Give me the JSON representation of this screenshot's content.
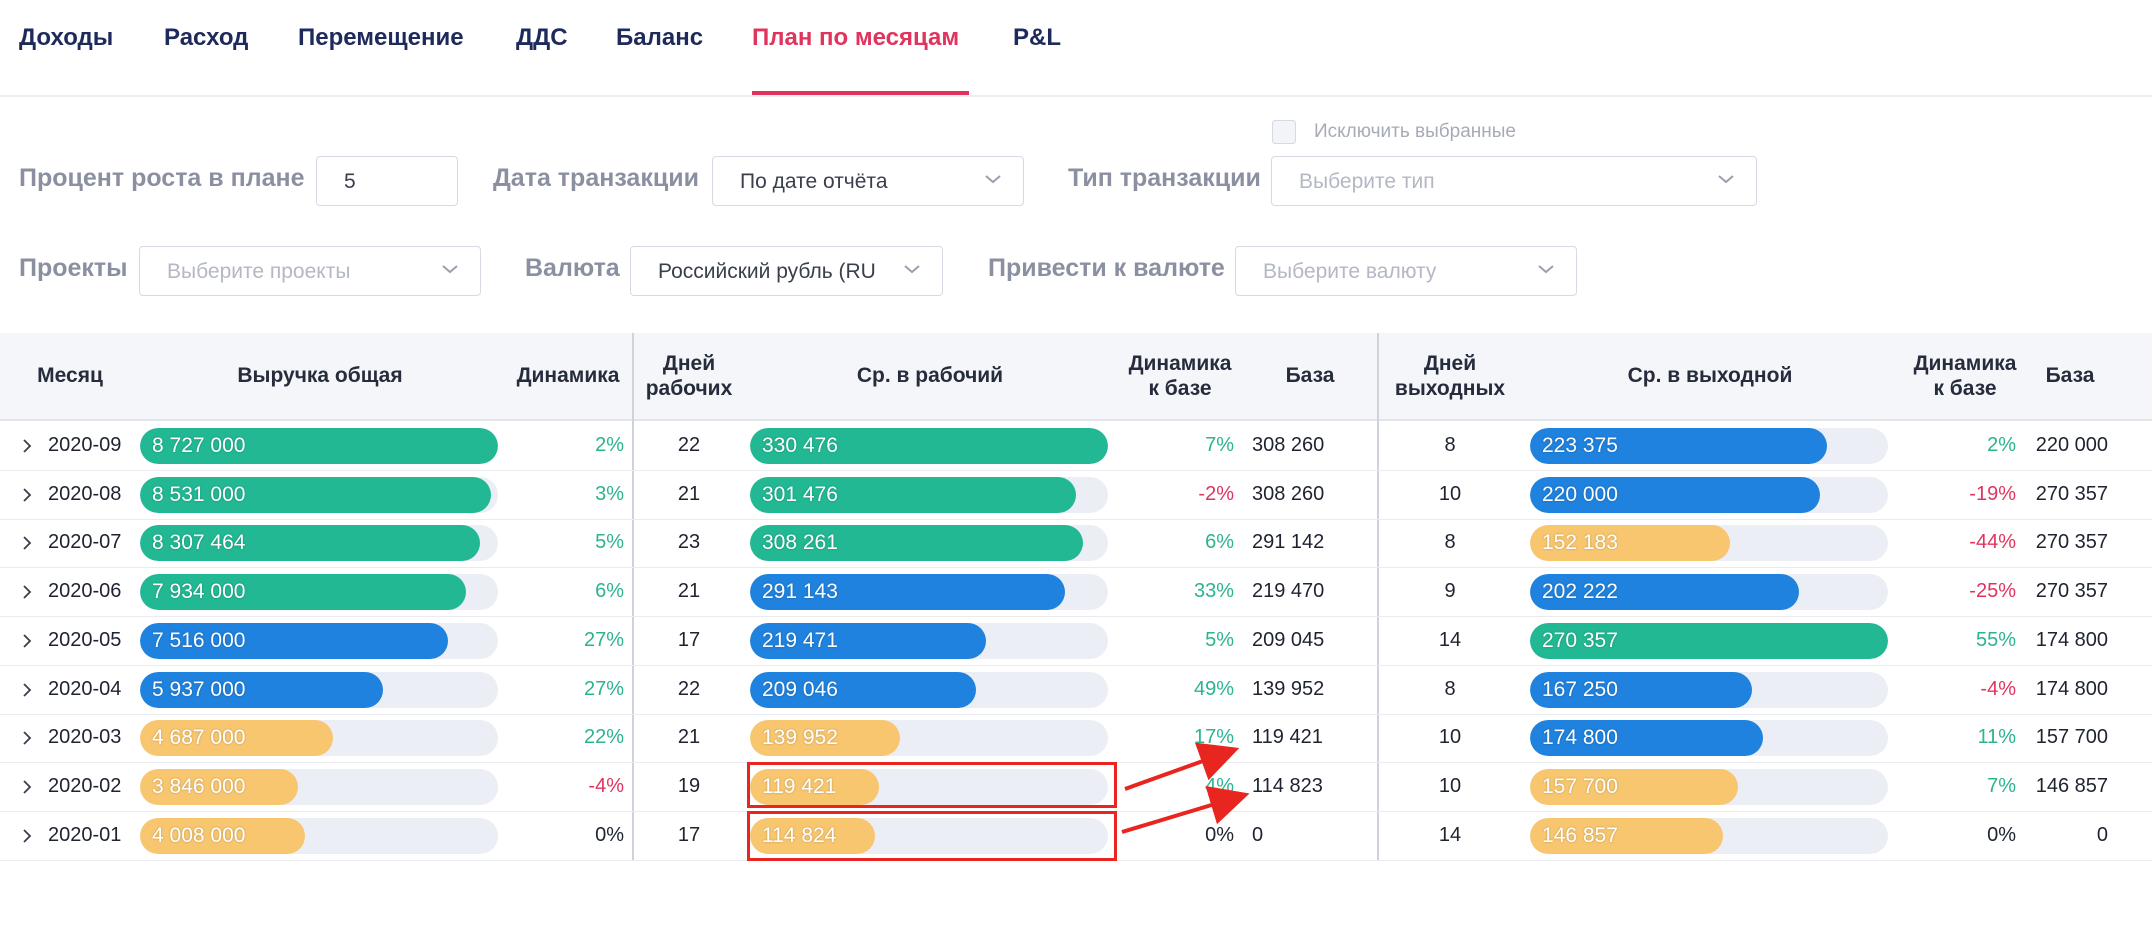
{
  "tabs": [
    {
      "label": "Доходы",
      "active": false
    },
    {
      "label": "Расход",
      "active": false
    },
    {
      "label": "Перемещение",
      "active": false
    },
    {
      "label": "ДДС",
      "active": false
    },
    {
      "label": "Баланс",
      "active": false
    },
    {
      "label": "План по месяцам",
      "active": true
    },
    {
      "label": "P&L",
      "active": false
    }
  ],
  "filters": {
    "growth_label": "Процент роста в плане",
    "growth_value": "5",
    "date_label": "Дата транзакции",
    "date_value": "По дате отчёта",
    "type_label": "Тип транзакции",
    "type_placeholder": "Выберите тип",
    "exclude_label": "Исключить выбранные",
    "projects_label": "Проекты",
    "projects_placeholder": "Выберите проекты",
    "currency_label": "Валюта",
    "currency_value": "Российский рубль (RU",
    "convert_label": "Привести к валюте",
    "convert_placeholder": "Выберите валюту"
  },
  "table": {
    "headers": {
      "month": "Месяц",
      "revenue": "Выручка общая",
      "dynamics": "Динамика",
      "workdays_1": "Дней",
      "workdays_2": "рабочих",
      "avg_work": "Ср. в рабочий",
      "dyn_base_w_1": "Динамика",
      "dyn_base_w_2": "к базе",
      "base_w": "База",
      "weekend_1": "Дней",
      "weekend_2": "выходных",
      "avg_weekend": "Ср. в выходной",
      "dyn_base_e_1": "Динамика",
      "dyn_base_e_2": "к базе",
      "base_e": "База"
    },
    "colors": {
      "green": "#22b893",
      "blue": "#1f82de",
      "orange": "#f8c66e",
      "track": "#eceef5",
      "positive": "#2cb38f",
      "negative": "#e0345e"
    },
    "rows": [
      {
        "month": "2020-09",
        "revenue": "8 727 000",
        "rev_level": 1.0,
        "rev_color": "green",
        "dyn": "2%",
        "dyn_sign": "pos",
        "workdays": "22",
        "avg_work": "330 476",
        "aw_level": 1.0,
        "aw_color": "green",
        "dyn_w": "7%",
        "dyn_w_sign": "pos",
        "base_w": "308 260",
        "weekend": "8",
        "avg_we": "223 375",
        "ae_level": 0.83,
        "ae_color": "blue",
        "dyn_e": "2%",
        "dyn_e_sign": "pos",
        "base_e": "220 000"
      },
      {
        "month": "2020-08",
        "revenue": "8 531 000",
        "rev_level": 0.98,
        "rev_color": "green",
        "dyn": "3%",
        "dyn_sign": "pos",
        "workdays": "21",
        "avg_work": "301 476",
        "aw_level": 0.91,
        "aw_color": "green",
        "dyn_w": "-2%",
        "dyn_w_sign": "neg",
        "base_w": "308 260",
        "weekend": "10",
        "avg_we": "220 000",
        "ae_level": 0.81,
        "ae_color": "blue",
        "dyn_e": "-19%",
        "dyn_e_sign": "neg",
        "base_e": "270 357"
      },
      {
        "month": "2020-07",
        "revenue": "8 307 464",
        "rev_level": 0.95,
        "rev_color": "green",
        "dyn": "5%",
        "dyn_sign": "pos",
        "workdays": "23",
        "avg_work": "308 261",
        "aw_level": 0.93,
        "aw_color": "green",
        "dyn_w": "6%",
        "dyn_w_sign": "pos",
        "base_w": "291 142",
        "weekend": "8",
        "avg_we": "152 183",
        "ae_level": 0.56,
        "ae_color": "orange",
        "dyn_e": "-44%",
        "dyn_e_sign": "neg",
        "base_e": "270 357"
      },
      {
        "month": "2020-06",
        "revenue": "7 934 000",
        "rev_level": 0.91,
        "rev_color": "green",
        "dyn": "6%",
        "dyn_sign": "pos",
        "workdays": "21",
        "avg_work": "291 143",
        "aw_level": 0.88,
        "aw_color": "blue",
        "dyn_w": "33%",
        "dyn_w_sign": "pos",
        "base_w": "219 470",
        "weekend": "9",
        "avg_we": "202 222",
        "ae_level": 0.75,
        "ae_color": "blue",
        "dyn_e": "-25%",
        "dyn_e_sign": "neg",
        "base_e": "270 357"
      },
      {
        "month": "2020-05",
        "revenue": "7 516 000",
        "rev_level": 0.86,
        "rev_color": "blue",
        "dyn": "27%",
        "dyn_sign": "pos",
        "workdays": "17",
        "avg_work": "219 471",
        "aw_level": 0.66,
        "aw_color": "blue",
        "dyn_w": "5%",
        "dyn_w_sign": "pos",
        "base_w": "209 045",
        "weekend": "14",
        "avg_we": "270 357",
        "ae_level": 1.0,
        "ae_color": "green",
        "dyn_e": "55%",
        "dyn_e_sign": "pos",
        "base_e": "174 800"
      },
      {
        "month": "2020-04",
        "revenue": "5 937 000",
        "rev_level": 0.68,
        "rev_color": "blue",
        "dyn": "27%",
        "dyn_sign": "pos",
        "workdays": "22",
        "avg_work": "209 046",
        "aw_level": 0.63,
        "aw_color": "blue",
        "dyn_w": "49%",
        "dyn_w_sign": "pos",
        "base_w": "139 952",
        "weekend": "8",
        "avg_we": "167 250",
        "ae_level": 0.62,
        "ae_color": "blue",
        "dyn_e": "-4%",
        "dyn_e_sign": "neg",
        "base_e": "174 800"
      },
      {
        "month": "2020-03",
        "revenue": "4 687 000",
        "rev_level": 0.54,
        "rev_color": "orange",
        "dyn": "22%",
        "dyn_sign": "pos",
        "workdays": "21",
        "avg_work": "139 952",
        "aw_level": 0.42,
        "aw_color": "orange",
        "dyn_w": "17%",
        "dyn_w_sign": "pos",
        "base_w": "119 421",
        "weekend": "10",
        "avg_we": "174 800",
        "ae_level": 0.65,
        "ae_color": "blue",
        "dyn_e": "11%",
        "dyn_e_sign": "pos",
        "base_e": "157 700"
      },
      {
        "month": "2020-02",
        "revenue": "3 846 000",
        "rev_level": 0.44,
        "rev_color": "orange",
        "dyn": "-4%",
        "dyn_sign": "neg",
        "workdays": "19",
        "avg_work": "119 421",
        "aw_level": 0.36,
        "aw_color": "orange",
        "dyn_w": "4%",
        "dyn_w_sign": "pos",
        "base_w": "114 823",
        "weekend": "10",
        "avg_we": "157 700",
        "ae_level": 0.58,
        "ae_color": "orange",
        "dyn_e": "7%",
        "dyn_e_sign": "pos",
        "base_e": "146 857"
      },
      {
        "month": "2020-01",
        "revenue": "4 008 000",
        "rev_level": 0.46,
        "rev_color": "orange",
        "dyn": "0%",
        "dyn_sign": "zero",
        "workdays": "17",
        "avg_work": "114 824",
        "aw_level": 0.35,
        "aw_color": "orange",
        "dyn_w": "0%",
        "dyn_w_sign": "zero",
        "base_w": "0",
        "weekend": "14",
        "avg_we": "146 857",
        "ae_level": 0.54,
        "ae_color": "orange",
        "dyn_e": "0%",
        "dyn_e_sign": "zero",
        "base_e": "0"
      }
    ]
  },
  "annotation_color": "#e8261f"
}
